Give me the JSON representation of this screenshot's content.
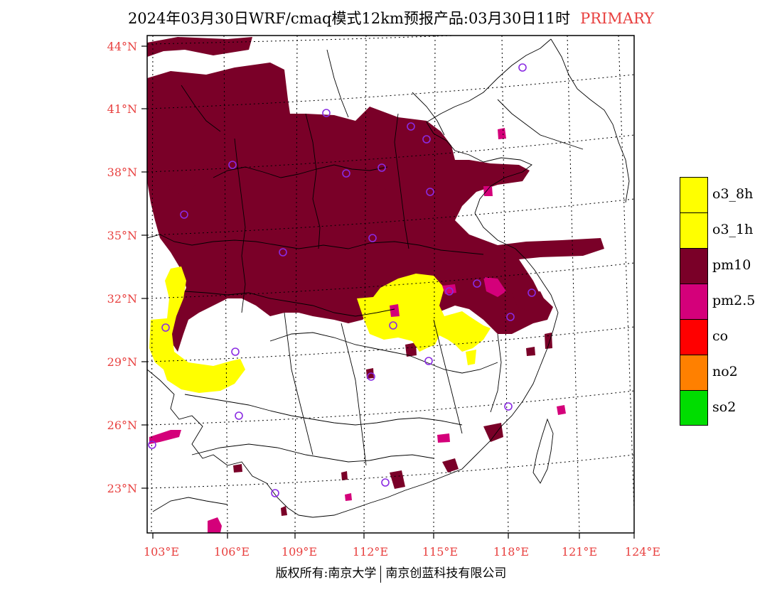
{
  "title": {
    "main": "2024年03月30日WRF/cmaq模式12km预报产品:03月30日11时",
    "tag": "PRIMARY",
    "tag_color": "#e8403f"
  },
  "axes": {
    "lat_labels": [
      "44°N",
      "41°N",
      "38°N",
      "35°N",
      "32°N",
      "29°N",
      "26°N",
      "23°N"
    ],
    "lon_labels": [
      "103°E",
      "106°E",
      "109°E",
      "112°E",
      "115°E",
      "118°E",
      "121°E",
      "124°E"
    ],
    "label_color": "#e8403f"
  },
  "legend": {
    "items": [
      {
        "label": "o3_8h",
        "color": "#ffff00"
      },
      {
        "label": "o3_1h",
        "color": "#ffff00"
      },
      {
        "label": "pm10",
        "color": "#7a0028"
      },
      {
        "label": "pm2.5",
        "color": "#d4007a"
      },
      {
        "label": "co",
        "color": "#ff0000"
      },
      {
        "label": "no2",
        "color": "#ff8000"
      },
      {
        "label": "so2",
        "color": "#00dd00"
      }
    ]
  },
  "footer": {
    "left": "版权所有:南京大学",
    "right": "南京创蓝科技有限公司"
  },
  "colors": {
    "pm10": "#7a0028",
    "pm25": "#d4007a",
    "o3": "#ffff00",
    "station": "#8a2be2"
  }
}
